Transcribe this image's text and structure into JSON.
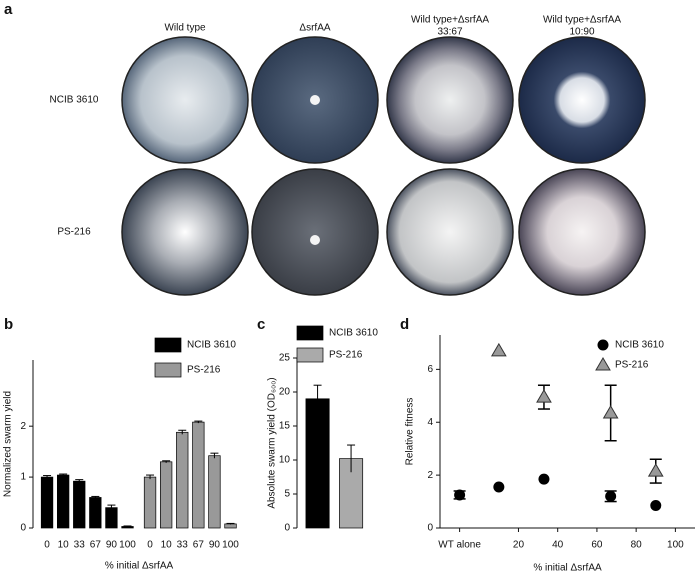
{
  "panel_a": {
    "label": "a",
    "columns": [
      {
        "title": "Wild type"
      },
      {
        "title": "ΔsrfAA"
      },
      {
        "title": "Wild type+ΔsrfAA",
        "ratio": "33:67"
      },
      {
        "title": "Wild type+ΔsrfAA",
        "ratio": "10:90"
      }
    ],
    "rows": [
      "NCIB 3610",
      "PS-216"
    ]
  },
  "chart_data": [
    {
      "type": "bar",
      "label": "b",
      "ylabel": "Normalized swarm yield",
      "xlabel": "% initial ΔsrfAA",
      "categories": [
        "0",
        "10",
        "33",
        "67",
        "90",
        "100"
      ],
      "series": [
        {
          "name": "NCIB 3610",
          "color": "#000000",
          "values": [
            1.0,
            1.04,
            0.92,
            0.6,
            0.4,
            0.03
          ],
          "errors": [
            0.03,
            0.02,
            0.03,
            0.02,
            0.05,
            0.01
          ]
        },
        {
          "name": "PS-216",
          "color": "#999999",
          "values": [
            1.0,
            1.3,
            1.88,
            2.08,
            1.42,
            0.08
          ],
          "errors": [
            0.04,
            0.02,
            0.04,
            0.02,
            0.05,
            0.01
          ]
        }
      ],
      "ylim": [
        0,
        3.3
      ],
      "yticks": [
        0,
        1,
        2
      ]
    },
    {
      "type": "bar",
      "label": "c",
      "ylabel": "Absolute swarm yield (OD₆₀₀)",
      "series": [
        {
          "name": "NCIB 3610",
          "color": "#000000",
          "values": [
            19
          ],
          "errors": [
            2
          ]
        },
        {
          "name": "PS-216",
          "color": "#aaaaaa",
          "values": [
            10.2
          ],
          "errors": [
            2
          ]
        }
      ],
      "ylim": [
        0,
        25
      ],
      "yticks": [
        0,
        5,
        10,
        15,
        20,
        25
      ]
    },
    {
      "type": "scatter",
      "label": "d",
      "ylabel": "Relative fitness",
      "xlabel": "% initial ΔsrfAA",
      "series": [
        {
          "name": "NCIB 3610",
          "color": "#000000",
          "marker": "circle",
          "x": [
            -10,
            10,
            33,
            67,
            90
          ],
          "values": [
            1.25,
            1.55,
            1.85,
            1.2,
            0.85
          ],
          "errors": [
            0.15,
            0,
            0,
            0.2,
            0
          ]
        },
        {
          "name": "PS-216",
          "color": "#999999",
          "marker": "triangle",
          "x": [
            10,
            33,
            67,
            90
          ],
          "values": [
            6.7,
            4.95,
            4.35,
            2.15
          ],
          "errors": [
            0,
            0.45,
            1.05,
            0.45
          ]
        }
      ],
      "xlim": [
        -20,
        110
      ],
      "xticks": [
        {
          "value": -10,
          "label": "WT alone"
        },
        20,
        40,
        60,
        80,
        100
      ],
      "ylim": [
        0,
        7.3
      ],
      "yticks": [
        0,
        2,
        4,
        6
      ]
    }
  ]
}
